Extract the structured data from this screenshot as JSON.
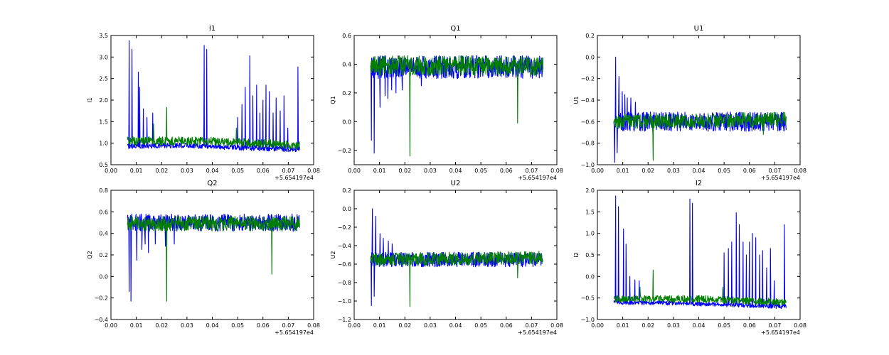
{
  "colors": {
    "series_blue": "#0000ff",
    "series_green": "#007f00"
  },
  "x_offset_label": "+5.654197e4",
  "chart_data": [
    {
      "type": "line",
      "title": "I1",
      "ylabel": "I1",
      "x_range": [
        0.0,
        0.08
      ],
      "ylim": [
        0.5,
        3.5
      ],
      "x_ticks": [
        "0.00",
        "0.01",
        "0.02",
        "0.03",
        "0.04",
        "0.05",
        "0.06",
        "0.07",
        "0.08"
      ],
      "y_ticks": [
        "0.5",
        "1.0",
        "1.5",
        "2.0",
        "2.5",
        "3.0",
        "3.5"
      ],
      "x_data_range": [
        0.0065,
        0.0745
      ],
      "series": [
        {
          "color": "blue",
          "baseline": 0.93,
          "noise": 0.06,
          "trend": [
            [
              0.0065,
              0.93
            ],
            [
              0.03,
              0.95
            ],
            [
              0.05,
              0.9
            ],
            [
              0.0745,
              0.85
            ]
          ],
          "spikes": [
            [
              0.0072,
              3.38
            ],
            [
              0.0083,
              3.18
            ],
            [
              0.0108,
              2.65
            ],
            [
              0.0113,
              2.3
            ],
            [
              0.0128,
              1.8
            ],
            [
              0.0142,
              1.6
            ],
            [
              0.0165,
              1.7
            ],
            [
              0.0368,
              3.27
            ],
            [
              0.0378,
              3.18
            ],
            [
              0.05,
              1.6
            ],
            [
              0.0517,
              1.9
            ],
            [
              0.053,
              2.3
            ],
            [
              0.0548,
              3.03
            ],
            [
              0.056,
              2.1
            ],
            [
              0.0575,
              2.35
            ],
            [
              0.0588,
              1.7
            ],
            [
              0.06,
              2.0
            ],
            [
              0.0612,
              2.35
            ],
            [
              0.0625,
              2.2
            ],
            [
              0.064,
              1.7
            ],
            [
              0.0652,
              2.05
            ],
            [
              0.0668,
              1.75
            ],
            [
              0.0683,
              2.1
            ],
            [
              0.0698,
              1.35
            ],
            [
              0.0738,
              2.77
            ]
          ]
        },
        {
          "color": "green",
          "baseline": 1.05,
          "noise": 0.1,
          "trend": [
            [
              0.0065,
              1.05
            ],
            [
              0.04,
              1.05
            ],
            [
              0.0745,
              0.95
            ]
          ],
          "spikes": [
            [
              0.022,
              1.83
            ],
            [
              0.0168,
              1.45
            ],
            [
              0.0495,
              1.35
            ]
          ]
        }
      ]
    },
    {
      "type": "line",
      "title": "Q1",
      "ylabel": "Q1",
      "x_range": [
        0.0,
        0.08
      ],
      "ylim": [
        -0.3,
        0.6
      ],
      "x_ticks": [
        "0.00",
        "0.01",
        "0.02",
        "0.03",
        "0.04",
        "0.05",
        "0.06",
        "0.07",
        "0.08"
      ],
      "y_ticks": [
        "−0.2",
        "0.0",
        "0.2",
        "0.4",
        "0.6"
      ],
      "x_data_range": [
        0.0065,
        0.0745
      ],
      "series": [
        {
          "color": "blue",
          "baseline": 0.38,
          "noise": 0.08,
          "trend": [
            [
              0.0065,
              0.38
            ],
            [
              0.0745,
              0.38
            ]
          ],
          "spikes": [
            [
              0.0068,
              -0.13
            ],
            [
              0.0079,
              -0.22
            ],
            [
              0.0102,
              0.1
            ],
            [
              0.0122,
              0.18
            ],
            [
              0.0133,
              0.16
            ],
            [
              0.0148,
              0.22
            ],
            [
              0.0165,
              0.2
            ],
            [
              0.019,
              0.22
            ],
            [
              0.0265,
              0.25
            ]
          ]
        },
        {
          "color": "green",
          "baseline": 0.39,
          "noise": 0.07,
          "trend": [
            [
              0.0065,
              0.39
            ],
            [
              0.0745,
              0.39
            ]
          ],
          "spikes": [
            [
              0.022,
              -0.24
            ],
            [
              0.0645,
              -0.01
            ]
          ]
        }
      ]
    },
    {
      "type": "line",
      "title": "U1",
      "ylabel": "U1",
      "x_range": [
        0.0,
        0.08
      ],
      "ylim": [
        -1.0,
        0.2
      ],
      "x_ticks": [
        "0.00",
        "0.01",
        "0.02",
        "0.03",
        "0.04",
        "0.05",
        "0.06",
        "0.07",
        "0.08"
      ],
      "y_ticks": [
        "−1.0",
        "−0.8",
        "−0.6",
        "−0.4",
        "−0.2",
        "0.0",
        "0.2"
      ],
      "x_data_range": [
        0.0065,
        0.0745
      ],
      "series": [
        {
          "color": "blue",
          "baseline": -0.6,
          "noise": 0.09,
          "trend": [
            [
              0.0065,
              -0.6
            ],
            [
              0.0745,
              -0.6
            ]
          ],
          "spikes": [
            [
              0.0068,
              -0.98
            ],
            [
              0.0072,
              0.0
            ],
            [
              0.0078,
              -0.89
            ],
            [
              0.0085,
              -0.18
            ],
            [
              0.0098,
              -0.32
            ],
            [
              0.0108,
              -0.35
            ],
            [
              0.0118,
              -0.38
            ],
            [
              0.0132,
              -0.38
            ],
            [
              0.015,
              -0.42
            ]
          ]
        },
        {
          "color": "green",
          "baseline": -0.6,
          "noise": 0.07,
          "trend": [
            [
              0.0065,
              -0.6
            ],
            [
              0.0745,
              -0.58
            ]
          ],
          "spikes": [
            [
              0.022,
              -0.96
            ],
            [
              0.0655,
              -0.72
            ]
          ]
        }
      ]
    },
    {
      "type": "line",
      "title": "Q2",
      "ylabel": "Q2",
      "x_range": [
        0.0,
        0.08
      ],
      "ylim": [
        -0.4,
        0.8
      ],
      "x_ticks": [
        "0.00",
        "0.01",
        "0.02",
        "0.03",
        "0.04",
        "0.05",
        "0.06",
        "0.07",
        "0.08"
      ],
      "y_ticks": [
        "−0.4",
        "−0.2",
        "0.0",
        "0.2",
        "0.4",
        "0.6",
        "0.8"
      ],
      "x_data_range": [
        0.0065,
        0.0745
      ],
      "series": [
        {
          "color": "blue",
          "baseline": 0.5,
          "noise": 0.08,
          "trend": [
            [
              0.0065,
              0.5
            ],
            [
              0.0745,
              0.5
            ]
          ],
          "spikes": [
            [
              0.0072,
              -0.14
            ],
            [
              0.0079,
              -0.23
            ],
            [
              0.0102,
              0.15
            ],
            [
              0.0122,
              0.25
            ],
            [
              0.0135,
              0.3
            ],
            [
              0.0148,
              0.22
            ],
            [
              0.0175,
              0.3
            ],
            [
              0.0215,
              0.28
            ],
            [
              0.025,
              0.3
            ]
          ]
        },
        {
          "color": "green",
          "baseline": 0.49,
          "noise": 0.07,
          "trend": [
            [
              0.0065,
              0.49
            ],
            [
              0.0745,
              0.49
            ]
          ],
          "spikes": [
            [
              0.022,
              -0.23
            ],
            [
              0.0635,
              0.02
            ]
          ]
        }
      ]
    },
    {
      "type": "line",
      "title": "U2",
      "ylabel": "U2",
      "x_range": [
        0.0,
        0.08
      ],
      "ylim": [
        -1.2,
        0.2
      ],
      "x_ticks": [
        "0.00",
        "0.01",
        "0.02",
        "0.03",
        "0.04",
        "0.05",
        "0.06",
        "0.07",
        "0.08"
      ],
      "y_ticks": [
        "−1.2",
        "−1.0",
        "−0.8",
        "−0.6",
        "−0.4",
        "−0.2",
        "0.0",
        "0.2"
      ],
      "x_data_range": [
        0.0065,
        0.0745
      ],
      "series": [
        {
          "color": "blue",
          "baseline": -0.55,
          "noise": 0.08,
          "trend": [
            [
              0.0065,
              -0.55
            ],
            [
              0.0745,
              -0.55
            ]
          ],
          "spikes": [
            [
              0.0068,
              -1.05
            ],
            [
              0.0072,
              0.0
            ],
            [
              0.0079,
              -0.95
            ],
            [
              0.0085,
              -0.08
            ],
            [
              0.0102,
              -0.27
            ],
            [
              0.0115,
              -0.32
            ],
            [
              0.0135,
              -0.35
            ],
            [
              0.015,
              -0.38
            ]
          ]
        },
        {
          "color": "green",
          "baseline": -0.55,
          "noise": 0.07,
          "trend": [
            [
              0.0065,
              -0.55
            ],
            [
              0.0745,
              -0.53
            ]
          ],
          "spikes": [
            [
              0.022,
              -1.06
            ],
            [
              0.0645,
              -0.75
            ]
          ]
        }
      ]
    },
    {
      "type": "line",
      "title": "I2",
      "ylabel": "I2",
      "x_range": [
        0.0,
        0.08
      ],
      "ylim": [
        -1.0,
        2.0
      ],
      "x_ticks": [
        "0.00",
        "0.01",
        "0.02",
        "0.03",
        "0.04",
        "0.05",
        "0.06",
        "0.07",
        "0.08"
      ],
      "y_ticks": [
        "−1.0",
        "−0.5",
        "0.0",
        "0.5",
        "1.0",
        "1.5",
        "2.0"
      ],
      "x_data_range": [
        0.0065,
        0.0745
      ],
      "series": [
        {
          "color": "blue",
          "baseline": -0.62,
          "noise": 0.05,
          "trend": [
            [
              0.0065,
              -0.6
            ],
            [
              0.03,
              -0.62
            ],
            [
              0.0745,
              -0.7
            ]
          ],
          "spikes": [
            [
              0.0072,
              1.87
            ],
            [
              0.0083,
              1.62
            ],
            [
              0.0103,
              1.1
            ],
            [
              0.0113,
              0.75
            ],
            [
              0.0128,
              0.0
            ],
            [
              0.0148,
              -0.08
            ],
            [
              0.0165,
              -0.1
            ],
            [
              0.0365,
              1.8
            ],
            [
              0.0375,
              1.7
            ],
            [
              0.05,
              0.55
            ],
            [
              0.0517,
              0.65
            ],
            [
              0.053,
              0.8
            ],
            [
              0.0548,
              1.48
            ],
            [
              0.056,
              1.2
            ],
            [
              0.0575,
              0.8
            ],
            [
              0.0588,
              0.5
            ],
            [
              0.06,
              0.8
            ],
            [
              0.0612,
              1.0
            ],
            [
              0.0625,
              0.9
            ],
            [
              0.064,
              0.5
            ],
            [
              0.0652,
              0.6
            ],
            [
              0.0668,
              0.2
            ],
            [
              0.0683,
              0.65
            ],
            [
              0.0698,
              -0.1
            ],
            [
              0.0738,
              1.2
            ]
          ]
        },
        {
          "color": "green",
          "baseline": -0.52,
          "noise": 0.08,
          "trend": [
            [
              0.0065,
              -0.52
            ],
            [
              0.04,
              -0.52
            ],
            [
              0.0745,
              -0.6
            ]
          ],
          "spikes": [
            [
              0.022,
              0.15
            ],
            [
              0.0168,
              -0.25
            ],
            [
              0.0495,
              -0.25
            ]
          ]
        }
      ]
    }
  ]
}
